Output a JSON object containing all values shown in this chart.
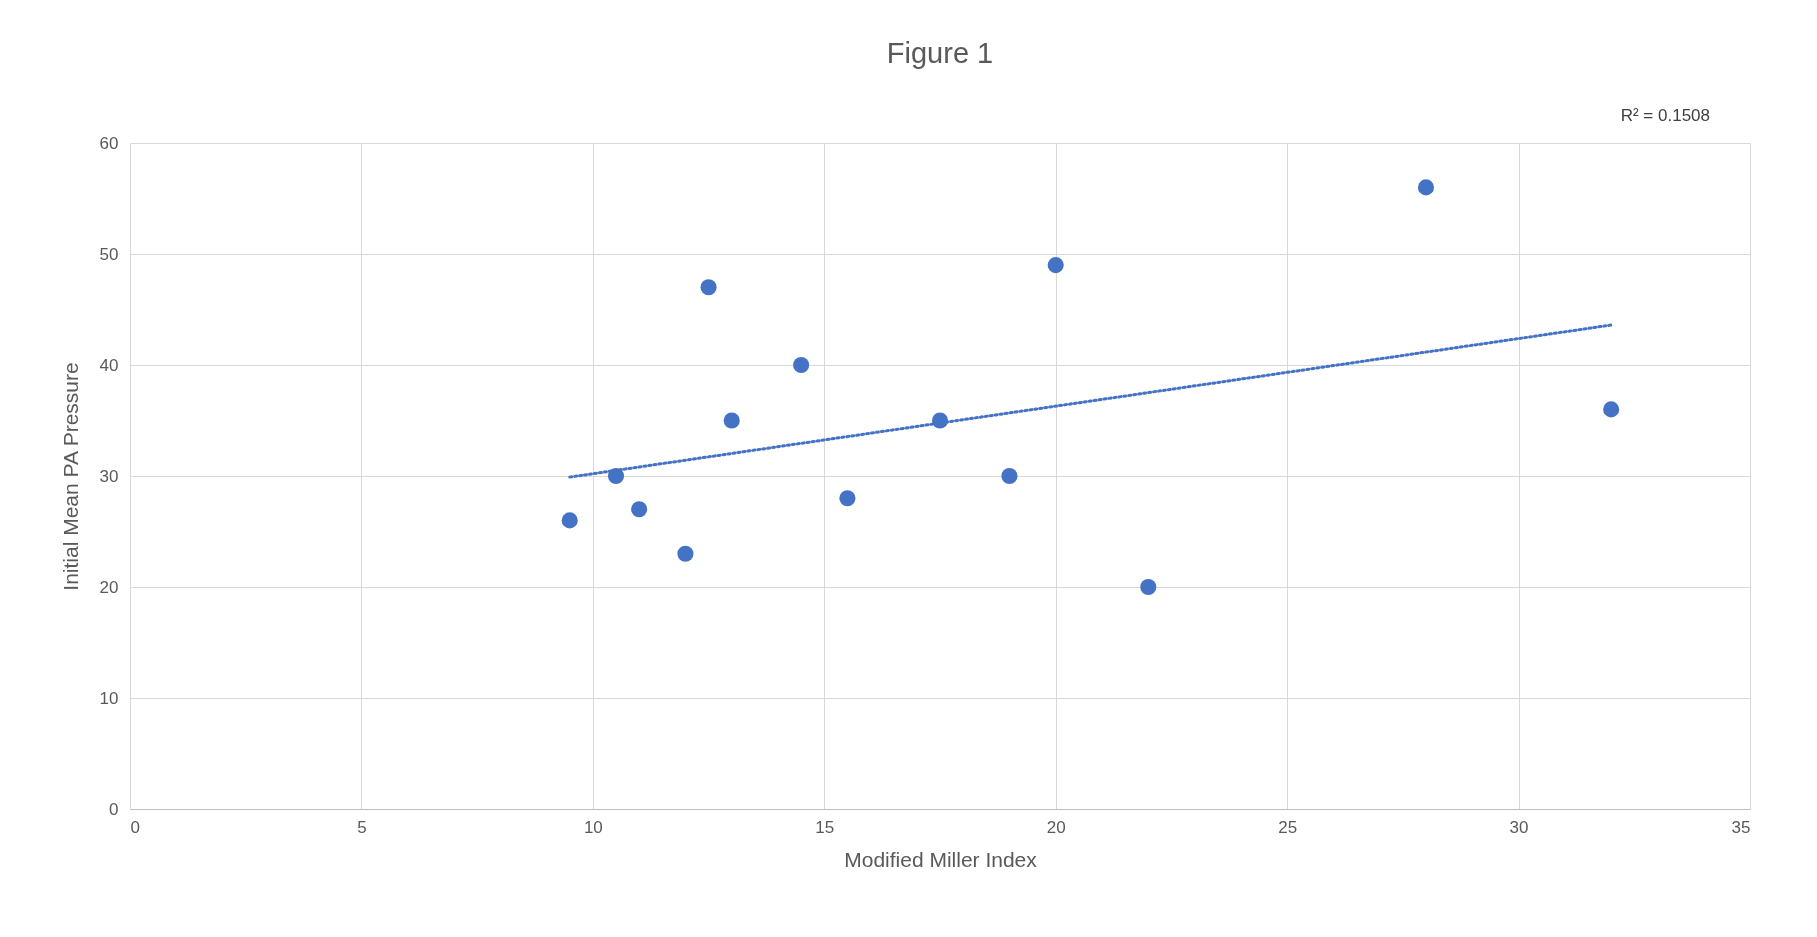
{
  "chart_data": {
    "type": "scatter",
    "title": "Figure 1",
    "xlabel": "Modified Miller Index",
    "ylabel": "Initial Mean PA Pressure",
    "annotations": [
      "R² = 0.1508"
    ],
    "xlim": [
      0,
      35
    ],
    "xticks": [
      0,
      5,
      10,
      15,
      20,
      25,
      30,
      35
    ],
    "ylim": [
      0,
      60
    ],
    "yticks": [
      0,
      10,
      20,
      30,
      40,
      50,
      60
    ],
    "grid": true,
    "series": [
      {
        "marker": "circle",
        "color": "#4472c4",
        "x": [
          9.5,
          10.5,
          11,
          12,
          12.5,
          13,
          14.5,
          15.5,
          17.5,
          19,
          20,
          22,
          28,
          32
        ],
        "values": [
          26,
          30,
          27,
          23,
          47,
          35,
          40,
          28,
          35,
          30,
          49,
          20,
          56,
          36
        ]
      },
      {
        "type": "line",
        "color": "#4472c4",
        "line_style": "dotted",
        "x": [
          9.5,
          32
        ],
        "values": [
          29.9,
          43.6
        ]
      }
    ]
  }
}
